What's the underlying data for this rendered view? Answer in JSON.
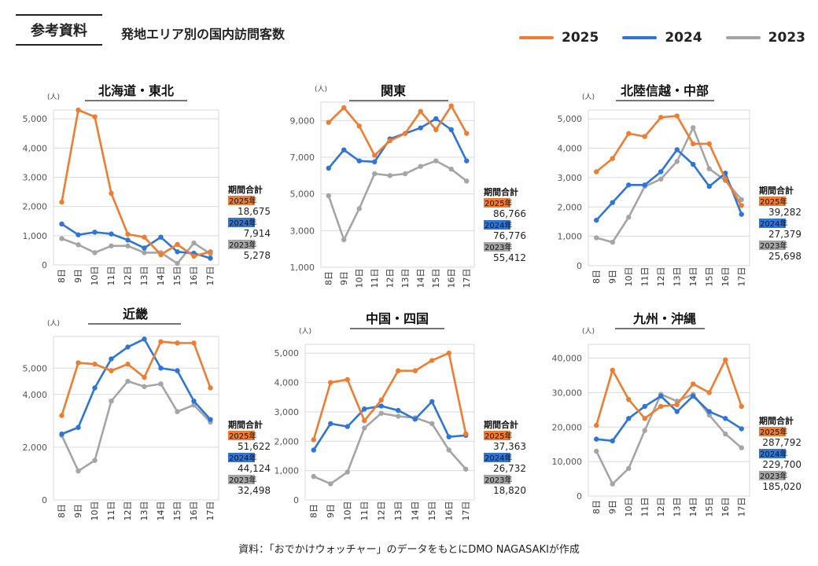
{
  "header": {
    "ref_label": "参考資料",
    "title": "発地エリア別の国内訪問客数"
  },
  "legend": [
    {
      "name": "2025",
      "color": "#ED7D31"
    },
    {
      "name": "2024",
      "color": "#2E75D6"
    },
    {
      "name": "2023",
      "color": "#A5A5A5"
    }
  ],
  "footer": "資料：「おでかけウォッチャー」のデータをもとにDMO NAGASAKIが作成",
  "totals_label": "期間合計",
  "chart_data": [
    {
      "type": "line",
      "title": "北海道・東北",
      "ylabel": "(人)",
      "categories": [
        "8日",
        "9日",
        "10日",
        "11日",
        "12日",
        "13日",
        "14日",
        "15日",
        "16日",
        "17日"
      ],
      "ylim": [
        0,
        5300
      ],
      "yticks": [
        0,
        1000,
        2000,
        3000,
        4000,
        5000
      ],
      "ytick_labels": [
        "0",
        "1,000",
        "2,000",
        "3,000",
        "4,000",
        "5,000"
      ],
      "series": [
        {
          "name": "2025",
          "values": [
            2150,
            5300,
            5070,
            2450,
            1050,
            950,
            350,
            700,
            300,
            450
          ]
        },
        {
          "name": "2024",
          "values": [
            1400,
            1030,
            1120,
            1060,
            850,
            580,
            950,
            450,
            400,
            230
          ]
        },
        {
          "name": "2023",
          "values": [
            900,
            690,
            420,
            650,
            650,
            420,
            420,
            50,
            750,
            380
          ]
        }
      ],
      "totals": [
        {
          "year": "2025年",
          "value": "18,675"
        },
        {
          "year": "2024年",
          "value": "7,914"
        },
        {
          "year": "2023年",
          "value": "5,278"
        }
      ]
    },
    {
      "type": "line",
      "title": "関東",
      "ylabel": "(人)",
      "categories": [
        "8日",
        "9日",
        "10日",
        "11日",
        "12日",
        "13日",
        "14日",
        "15日",
        "16日",
        "17日"
      ],
      "ylim": [
        1000,
        10000
      ],
      "yticks": [
        1000,
        3000,
        5000,
        7000,
        9000
      ],
      "ytick_labels": [
        "1,000",
        "3,000",
        "5,000",
        "7,000",
        "9,000"
      ],
      "series": [
        {
          "name": "2025",
          "values": [
            8900,
            9700,
            8700,
            7100,
            7900,
            8300,
            9500,
            8500,
            9800,
            8300
          ]
        },
        {
          "name": "2024",
          "values": [
            6400,
            7400,
            6800,
            6750,
            8000,
            8300,
            8600,
            9100,
            8500,
            6800
          ]
        },
        {
          "name": "2023",
          "values": [
            4900,
            2500,
            4200,
            6100,
            6000,
            6100,
            6500,
            6800,
            6350,
            5700
          ]
        }
      ],
      "totals": [
        {
          "year": "2025年",
          "value": "86,766"
        },
        {
          "year": "2024年",
          "value": "76,776"
        },
        {
          "year": "2023年",
          "value": "55,412"
        }
      ]
    },
    {
      "type": "line",
      "title": "北陸信越・中部",
      "ylabel": "(人)",
      "categories": [
        "8日",
        "9日",
        "10日",
        "11日",
        "12日",
        "13日",
        "14日",
        "15日",
        "16日",
        "17日"
      ],
      "ylim": [
        0,
        5300
      ],
      "yticks": [
        0,
        1000,
        2000,
        3000,
        4000,
        5000
      ],
      "ytick_labels": [
        "0",
        "1,000",
        "2,000",
        "3,000",
        "4,000",
        "5,000"
      ],
      "series": [
        {
          "name": "2025",
          "values": [
            3200,
            3650,
            4500,
            4400,
            5050,
            5100,
            4150,
            4150,
            2950,
            2050
          ]
        },
        {
          "name": "2024",
          "values": [
            1550,
            2150,
            2750,
            2750,
            3200,
            3950,
            3450,
            2700,
            3150,
            1750
          ]
        },
        {
          "name": "2023",
          "values": [
            950,
            800,
            1650,
            2700,
            2950,
            3550,
            4700,
            3300,
            2900,
            2250
          ]
        }
      ],
      "totals": [
        {
          "year": "2025年",
          "value": "39,282"
        },
        {
          "year": "2024年",
          "value": "27,379"
        },
        {
          "year": "2023年",
          "value": "25,698"
        }
      ]
    },
    {
      "type": "line",
      "title": "近畿",
      "ylabel": "(人)",
      "categories": [
        "8日",
        "9日",
        "10日",
        "11日",
        "12日",
        "13日",
        "14日",
        "15日",
        "16日",
        "17日"
      ],
      "ylim": [
        0,
        6200
      ],
      "yticks": [
        0,
        2000,
        4000,
        5000
      ],
      "ytick_labels": [
        "0",
        "2,000",
        "4,000",
        "5,000"
      ],
      "series": [
        {
          "name": "2025",
          "values": [
            3200,
            5200,
            5150,
            4900,
            5150,
            4650,
            6000,
            5950,
            5950,
            4250
          ]
        },
        {
          "name": "2024",
          "values": [
            2500,
            2750,
            4250,
            5350,
            5800,
            6100,
            5000,
            4900,
            3750,
            3050
          ]
        },
        {
          "name": "2023",
          "values": [
            2450,
            1100,
            1500,
            3750,
            4500,
            4300,
            4400,
            3350,
            3600,
            2950
          ]
        }
      ],
      "totals": [
        {
          "year": "2025年",
          "value": "51,622"
        },
        {
          "year": "2024年",
          "value": "44,124"
        },
        {
          "year": "2023年",
          "value": "32,498"
        }
      ]
    },
    {
      "type": "line",
      "title": "中国・四国",
      "ylabel": "(人)",
      "categories": [
        "8日",
        "9日",
        "10日",
        "11日",
        "12日",
        "13日",
        "14日",
        "15日",
        "16日",
        "17日"
      ],
      "ylim": [
        0,
        5300
      ],
      "yticks": [
        0,
        1000,
        2000,
        3000,
        4000,
        5000
      ],
      "ytick_labels": [
        "0",
        "1,000",
        "2,000",
        "3,000",
        "4,000",
        "5,000"
      ],
      "series": [
        {
          "name": "2025",
          "values": [
            2050,
            4000,
            4100,
            2700,
            3400,
            4400,
            4400,
            4750,
            5000,
            2250
          ]
        },
        {
          "name": "2024",
          "values": [
            1700,
            2600,
            2500,
            3100,
            3200,
            3050,
            2750,
            3350,
            2150,
            2200
          ]
        },
        {
          "name": "2023",
          "values": [
            800,
            550,
            950,
            2450,
            2950,
            2850,
            2800,
            2600,
            1700,
            1050
          ]
        }
      ],
      "totals": [
        {
          "year": "2025年",
          "value": "37,363"
        },
        {
          "year": "2024年",
          "value": "26,732"
        },
        {
          "year": "2023年",
          "value": "18,820"
        }
      ]
    },
    {
      "type": "line",
      "title": "九州・沖縄",
      "ylabel": "(人)",
      "categories": [
        "8日",
        "9日",
        "10日",
        "11日",
        "12日",
        "13日",
        "14日",
        "15日",
        "16日",
        "17日"
      ],
      "ylim": [
        0,
        44000
      ],
      "yticks": [
        0,
        10000,
        20000,
        30000,
        40000
      ],
      "ytick_labels": [
        "0",
        "10,000",
        "20,000",
        "30,000",
        "40,000"
      ],
      "series": [
        {
          "name": "2025",
          "values": [
            20500,
            36500,
            28000,
            22500,
            26000,
            26500,
            32500,
            30000,
            39500,
            26000
          ]
        },
        {
          "name": "2024",
          "values": [
            16500,
            16000,
            22500,
            26000,
            29000,
            24500,
            29000,
            24500,
            22500,
            19500
          ]
        },
        {
          "name": "2023",
          "values": [
            13000,
            3500,
            8000,
            19000,
            29500,
            27500,
            29500,
            23500,
            18000,
            14000
          ]
        }
      ],
      "totals": [
        {
          "year": "2025年",
          "value": "287,792"
        },
        {
          "year": "2024年",
          "value": "229,700"
        },
        {
          "year": "2023年",
          "value": "185,020"
        }
      ]
    }
  ]
}
